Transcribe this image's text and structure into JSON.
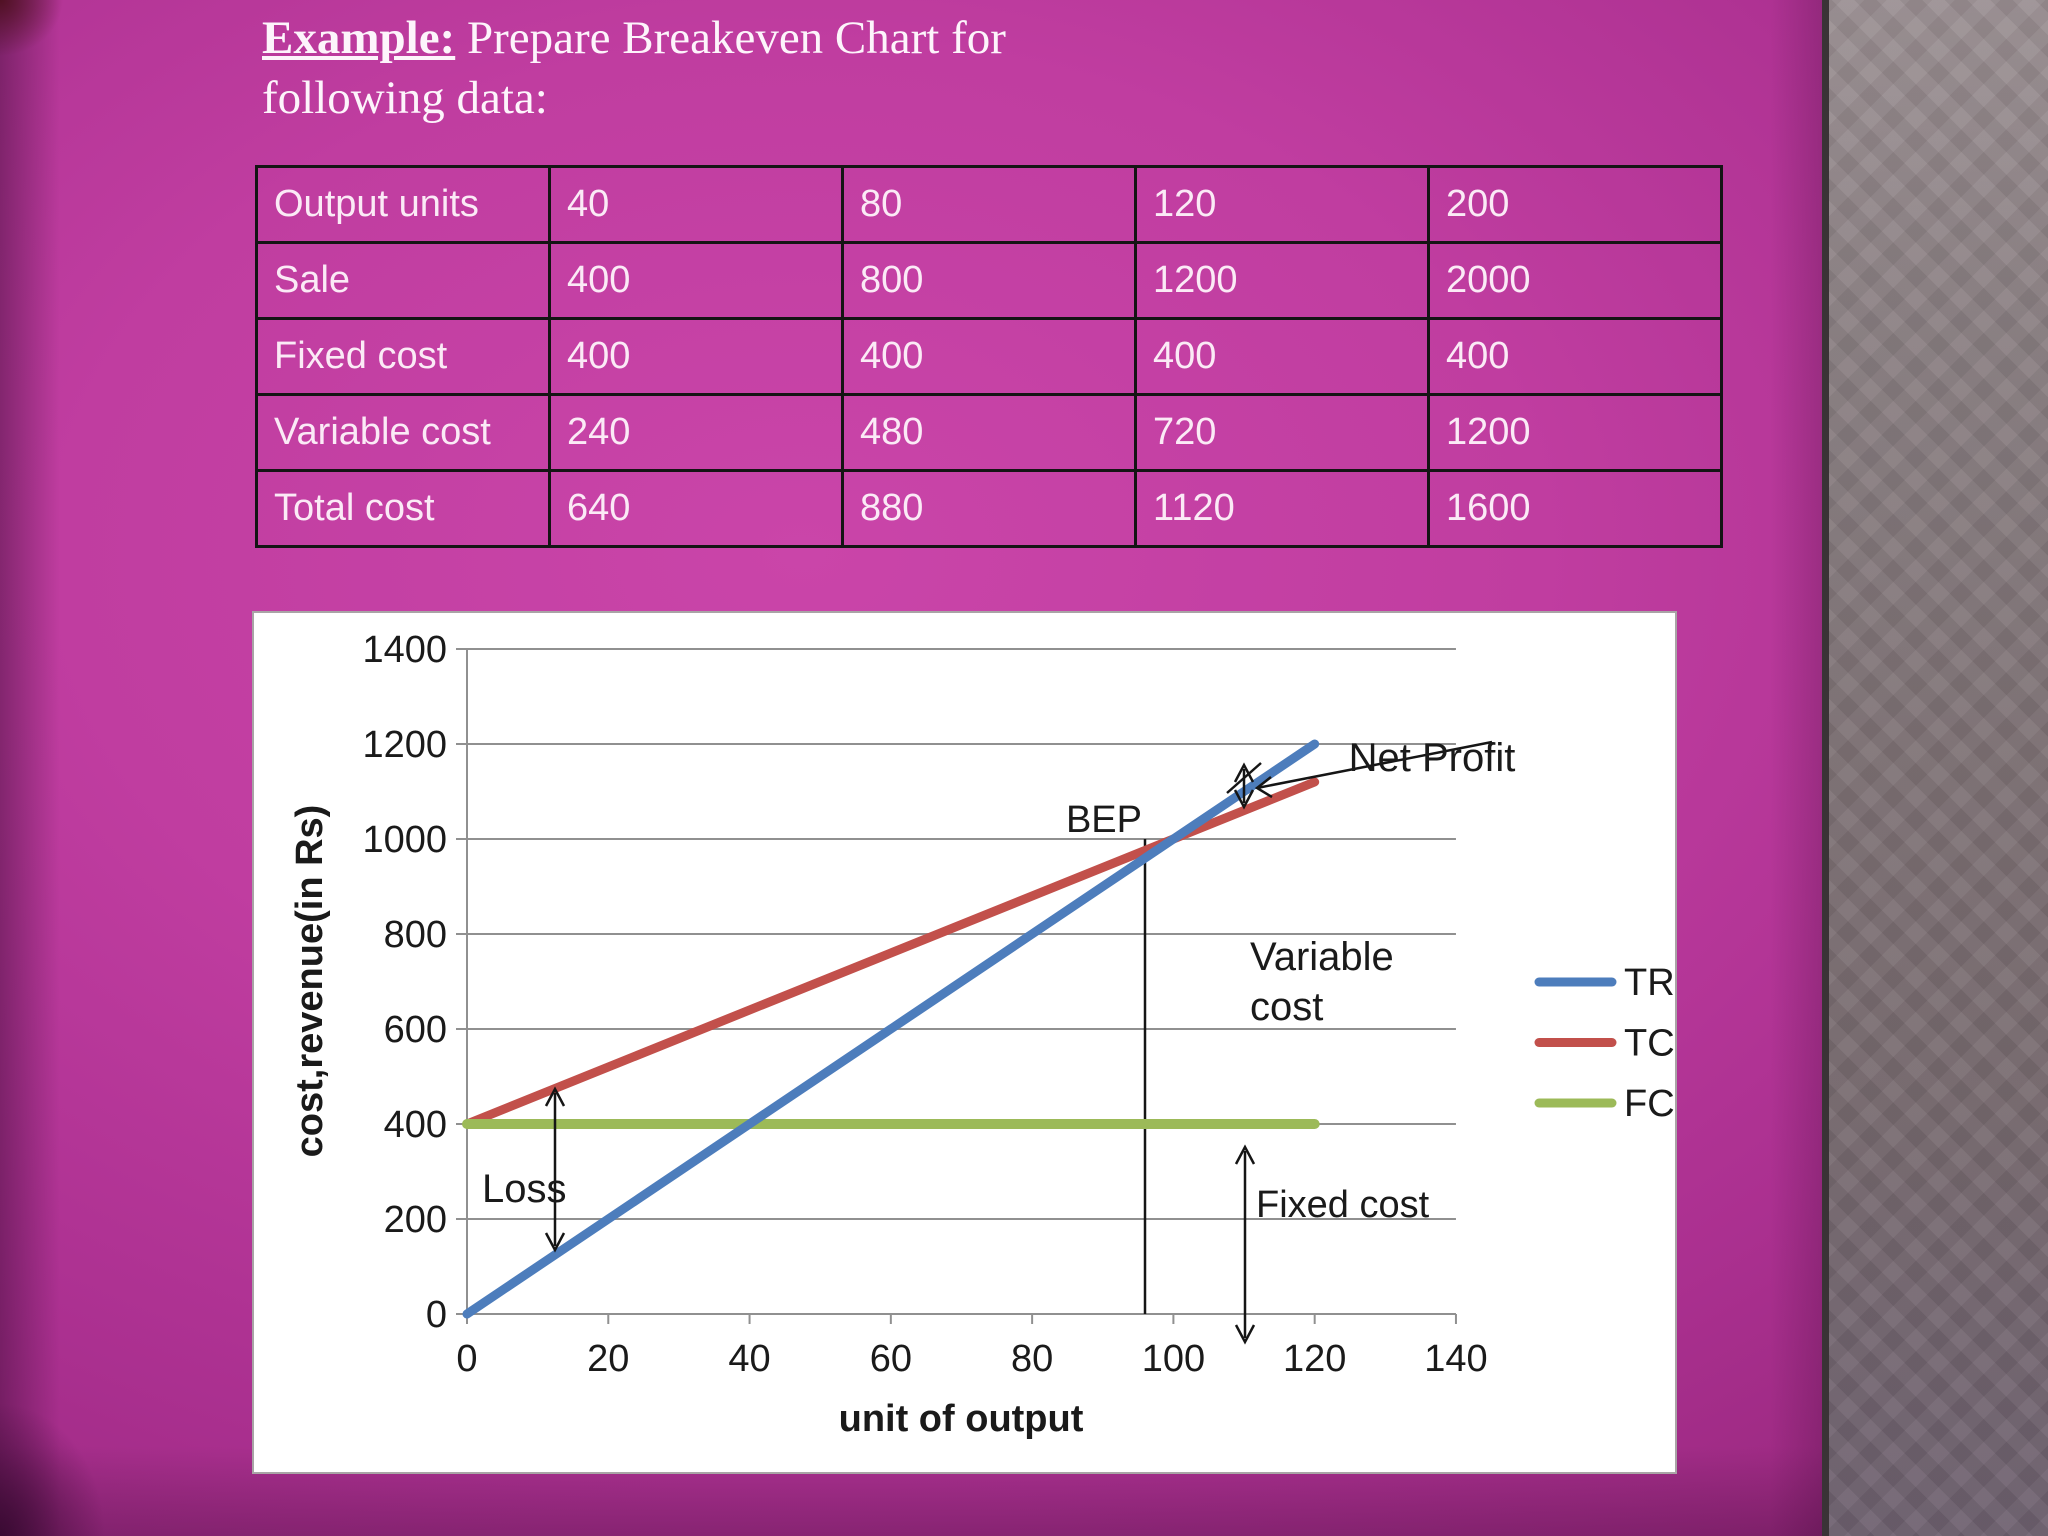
{
  "slide": {
    "title_keyword": "Example:",
    "title_rest": " Prepare Breakeven Chart for",
    "title_line2": "following data:"
  },
  "table": {
    "rows": [
      {
        "label": "Output units",
        "values": [
          "40",
          "80",
          "120",
          "200"
        ]
      },
      {
        "label": "Sale",
        "values": [
          "400",
          "800",
          "1200",
          "2000"
        ]
      },
      {
        "label": "Fixed cost",
        "values": [
          "400",
          "400",
          "400",
          "400"
        ]
      },
      {
        "label": "Variable cost",
        "values": [
          "240",
          "480",
          "720",
          "1200"
        ]
      },
      {
        "label": "Total cost",
        "values": [
          "640",
          "880",
          "1120",
          "1600"
        ]
      }
    ]
  },
  "chart_data": {
    "type": "line",
    "title": "",
    "xlabel": "unit of output",
    "ylabel": "cost,revenue(in Rs)",
    "xlim": [
      0,
      140
    ],
    "ylim": [
      0,
      1400
    ],
    "x_ticks": [
      0,
      20,
      40,
      60,
      80,
      100,
      120,
      140
    ],
    "y_ticks": [
      0,
      200,
      400,
      600,
      800,
      1000,
      1200,
      1400
    ],
    "grid": true,
    "legend_position": "right",
    "series": [
      {
        "name": "TR",
        "color": "#4d7dbc",
        "x": [
          0,
          120
        ],
        "y": [
          0,
          1200
        ]
      },
      {
        "name": "TC",
        "color": "#c2504b",
        "x": [
          0,
          120
        ],
        "y": [
          400,
          1120
        ]
      },
      {
        "name": "FC",
        "color": "#9cba58",
        "x": [
          0,
          120
        ],
        "y": [
          400,
          400
        ]
      }
    ],
    "breakeven_point": {
      "x": 100,
      "y": 1000
    },
    "annotations": {
      "bep": "BEP",
      "net_profit": "Net Profit",
      "variable_cost": "Variable cost",
      "fixed_cost": "Fixed cost",
      "loss": "Loss"
    }
  },
  "colors": {
    "slide_background": "#b23597",
    "side_band": "#7f7376",
    "table_border": "#141414",
    "grid_line": "#909090",
    "tr_line": "#4d7dbc",
    "tc_line": "#c2504b",
    "fc_line": "#9cba58"
  }
}
